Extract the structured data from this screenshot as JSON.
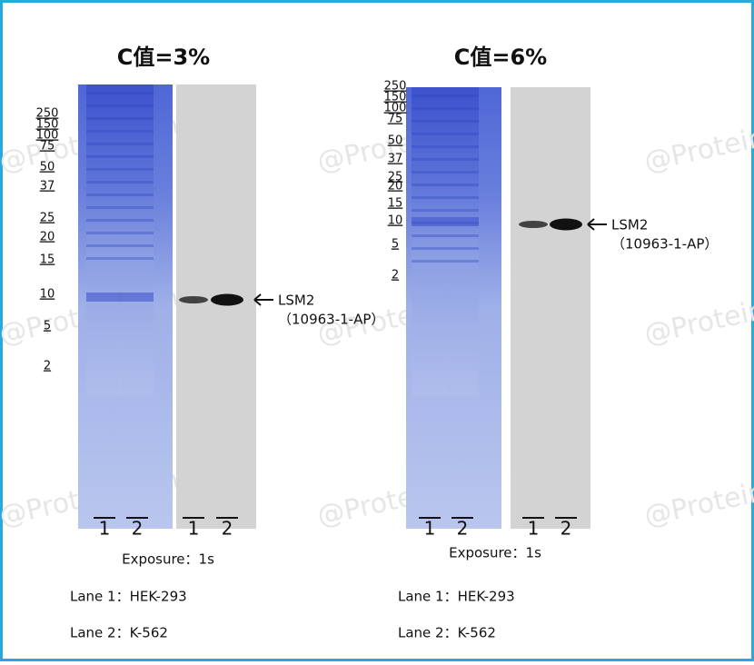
{
  "watermark": "@Proteintech",
  "panels": [
    {
      "title": "C值=3%",
      "markers": [
        250,
        150,
        100,
        75,
        50,
        37,
        25,
        20,
        15,
        10,
        5,
        2
      ],
      "gel_lanes": [
        "1",
        "2"
      ],
      "blot_lanes": [
        "1",
        "2"
      ],
      "band_label": "LSM2",
      "antibody": "（10963-1-AP）",
      "exposure": "Exposure：1s",
      "lanes": [
        "Lane 1：HEK-293",
        "Lane 2：K-562"
      ]
    },
    {
      "title": "C值=6%",
      "markers": [
        250,
        150,
        100,
        75,
        50,
        37,
        25,
        20,
        15,
        10,
        5,
        2
      ],
      "gel_lanes": [
        "1",
        "2"
      ],
      "blot_lanes": [
        "1",
        "2"
      ],
      "band_label": "LSM2",
      "antibody": "（10963-1-AP）",
      "exposure": "Exposure：1s",
      "lanes": [
        "Lane 1：HEK-293",
        "Lane 2：K-562"
      ]
    }
  ]
}
